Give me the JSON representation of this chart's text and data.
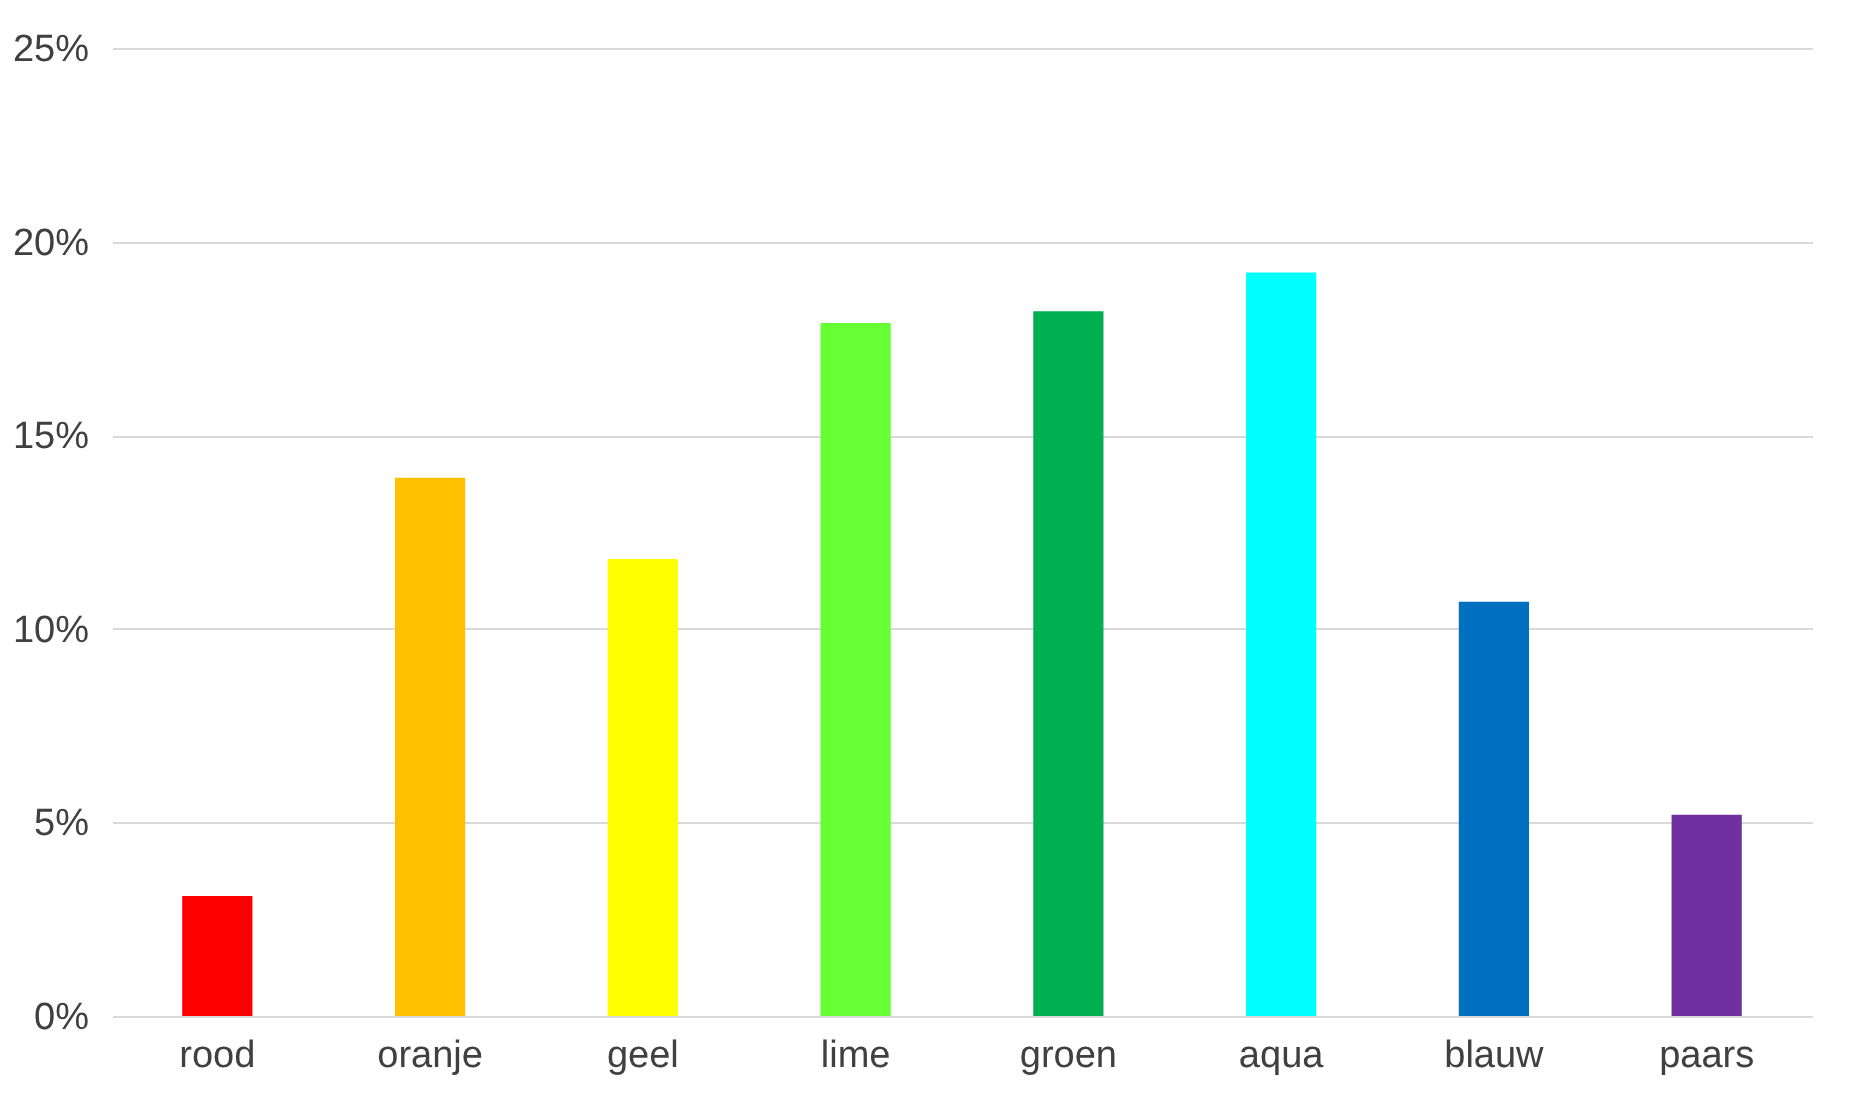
{
  "chart_data": {
    "type": "bar",
    "categories": [
      "rood",
      "oranje",
      "geel",
      "lime",
      "groen",
      "aqua",
      "blauw",
      "paars"
    ],
    "values": [
      3.1,
      13.9,
      11.8,
      17.9,
      18.2,
      19.2,
      10.7,
      5.2
    ],
    "colors": [
      "#ff0000",
      "#ffc000",
      "#ffff00",
      "#66ff33",
      "#00b050",
      "#00ffff",
      "#0070c0",
      "#7030a0"
    ],
    "ylim": [
      0,
      25
    ],
    "yticks": [
      {
        "value": 0,
        "label": "0%"
      },
      {
        "value": 5,
        "label": "5%"
      },
      {
        "value": 10,
        "label": "10%"
      },
      {
        "value": 15,
        "label": "15%"
      },
      {
        "value": 20,
        "label": "20%"
      },
      {
        "value": 25,
        "label": "25%"
      }
    ],
    "grid": "y"
  }
}
